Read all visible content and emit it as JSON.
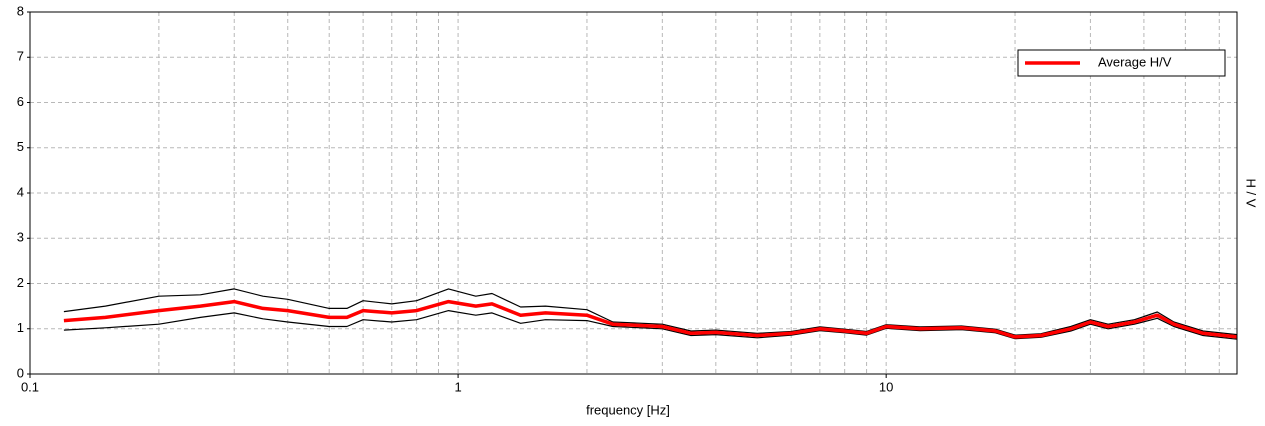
{
  "chart_data": {
    "type": "line",
    "xlabel": "frequency [Hz]",
    "ylabel": "H / V",
    "xscale": "log",
    "grid": true,
    "legend": "upper right",
    "xlim": [
      0.1,
      66
    ],
    "ylim": [
      0,
      8
    ],
    "xticks": [
      0.1,
      1,
      10
    ],
    "xminorticks": [
      0.2,
      0.3,
      0.4,
      0.5,
      0.6,
      0.7,
      0.8,
      0.9,
      2,
      3,
      4,
      5,
      6,
      7,
      8,
      9,
      20,
      30,
      40,
      50,
      60
    ],
    "yticks": [
      0,
      1,
      2,
      3,
      4,
      5,
      6,
      7,
      8
    ],
    "x": [
      0.12,
      0.15,
      0.2,
      0.25,
      0.3,
      0.35,
      0.4,
      0.5,
      0.55,
      0.6,
      0.7,
      0.8,
      0.95,
      1.1,
      1.2,
      1.4,
      1.6,
      2,
      2.3,
      3,
      3.5,
      4,
      5,
      6,
      7,
      8,
      9,
      10,
      12,
      15,
      18,
      20,
      23,
      27,
      30,
      33,
      38,
      43,
      47,
      55,
      66
    ],
    "series": [
      {
        "color": "#000000",
        "width": 1.2,
        "values": [
          1.38,
          1.5,
          1.72,
          1.75,
          1.88,
          1.72,
          1.65,
          1.45,
          1.45,
          1.62,
          1.55,
          1.62,
          1.88,
          1.72,
          1.78,
          1.48,
          1.5,
          1.42,
          1.15,
          1.1,
          0.95,
          0.97,
          0.9,
          0.94,
          1.04,
          0.99,
          0.94,
          1.09,
          1.04,
          1.06,
          0.99,
          0.86,
          0.89,
          1.05,
          1.2,
          1.1,
          1.2,
          1.37,
          1.15,
          0.95,
          0.87
        ]
      },
      {
        "color": "#000000",
        "width": 1.2,
        "values": [
          0.97,
          1.02,
          1.1,
          1.25,
          1.35,
          1.22,
          1.15,
          1.05,
          1.05,
          1.2,
          1.15,
          1.2,
          1.4,
          1.3,
          1.35,
          1.12,
          1.2,
          1.18,
          1.05,
          1.0,
          0.85,
          0.87,
          0.8,
          0.86,
          0.96,
          0.91,
          0.86,
          1.01,
          0.96,
          0.98,
          0.91,
          0.78,
          0.81,
          0.95,
          1.1,
          1.0,
          1.1,
          1.23,
          1.05,
          0.85,
          0.77
        ]
      },
      {
        "name": "Average H/V",
        "color": "#ff0000",
        "width": 3.5,
        "values": [
          1.18,
          1.25,
          1.4,
          1.5,
          1.6,
          1.45,
          1.4,
          1.25,
          1.25,
          1.4,
          1.35,
          1.4,
          1.6,
          1.5,
          1.55,
          1.3,
          1.35,
          1.3,
          1.1,
          1.05,
          0.9,
          0.92,
          0.85,
          0.9,
          1.0,
          0.95,
          0.9,
          1.05,
          1.0,
          1.02,
          0.95,
          0.82,
          0.85,
          1.0,
          1.15,
          1.05,
          1.15,
          1.3,
          1.1,
          0.9,
          0.82
        ]
      }
    ]
  }
}
